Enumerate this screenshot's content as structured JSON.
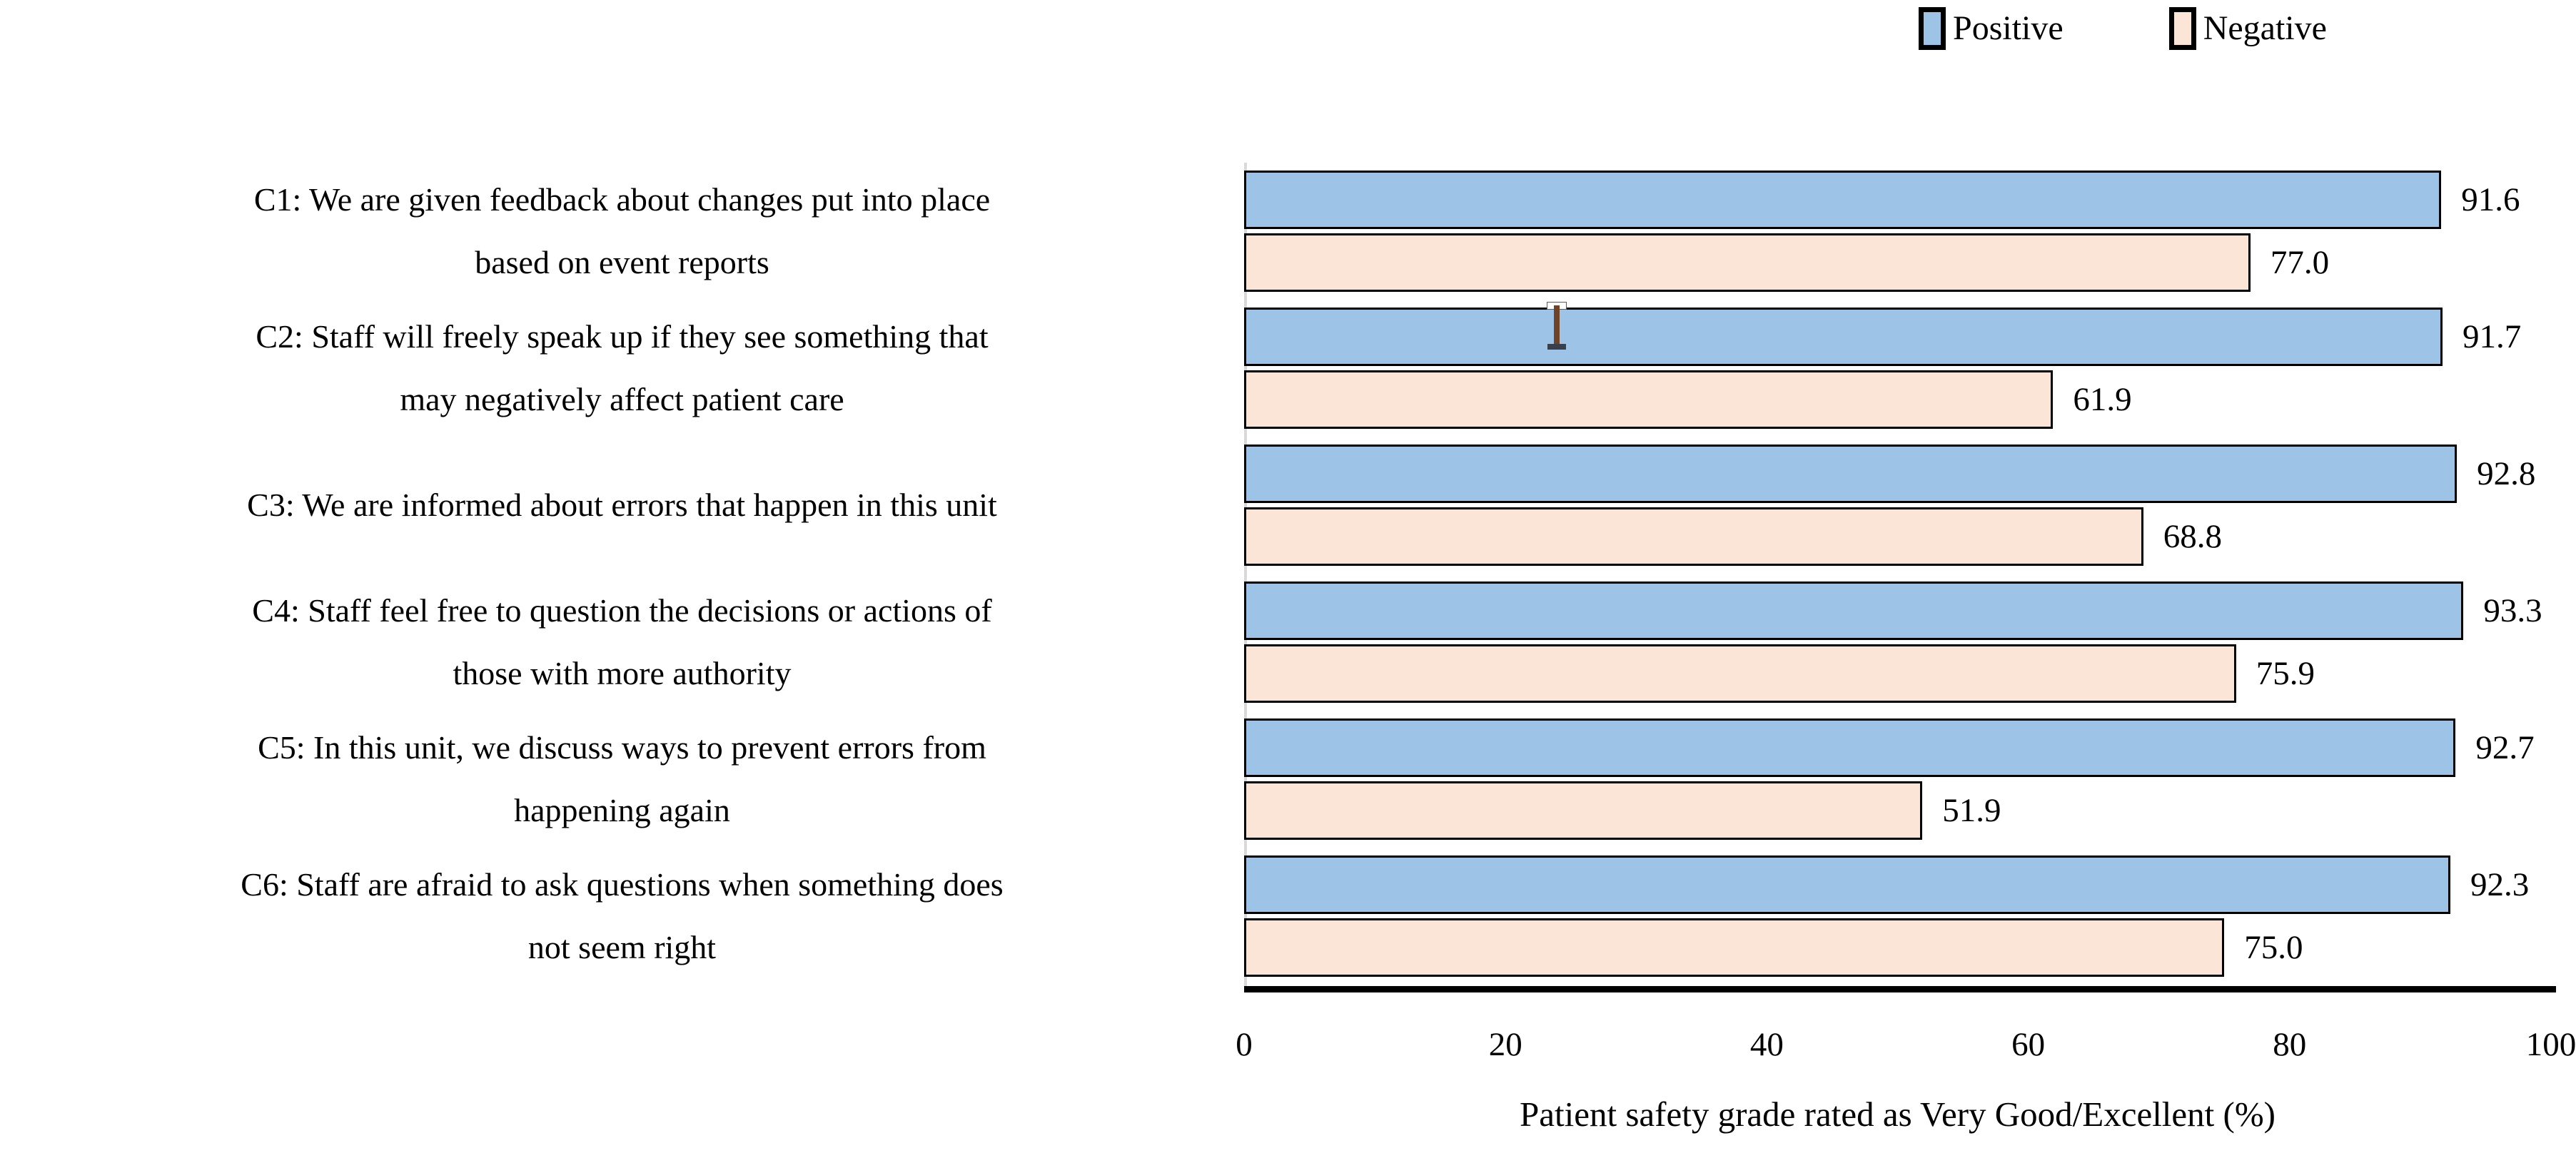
{
  "chart_data": {
    "type": "bar",
    "orientation": "horizontal",
    "title": "",
    "xlabel": "Patient safety grade rated as Very Good/Excellent (%)",
    "ylabel": "",
    "xlim": [
      0,
      100
    ],
    "xticks": [
      0,
      20,
      40,
      60,
      80,
      100
    ],
    "grid": false,
    "legend_position": "top-right",
    "value_labels": "outside end, one decimal",
    "categories": [
      "C1: We are given feedback about changes put into place\nbased on event reports",
      "C2: Staff will freely speak up if they see something that\nmay negatively affect patient care",
      "C3: We are informed about errors that happen in this unit",
      "C4: Staff feel free to question the decisions or actions of\nthose with more authority",
      "C5: In this unit, we discuss ways to prevent errors from\nhappening again",
      "C6: Staff are afraid to ask questions when something does\nnot seem right"
    ],
    "series": [
      {
        "name": "Positive",
        "color": "#9DC3E6",
        "border_color": "#000000",
        "values": [
          91.6,
          91.7,
          92.8,
          93.3,
          92.7,
          92.3
        ]
      },
      {
        "name": "Negative",
        "color": "#FBE5D6",
        "border_color": "#000000",
        "values": [
          77.0,
          61.9,
          68.8,
          75.9,
          51.9,
          75.0
        ]
      }
    ]
  },
  "legend": {
    "items": [
      {
        "label": "Positive",
        "color": "#9DC3E6"
      },
      {
        "label": "Negative",
        "color": "#FBE5D6"
      }
    ]
  },
  "axis": {
    "line_color": "#000000",
    "edge_color": "#d9d9d9"
  },
  "cursor": {
    "kind": "text-ibeam",
    "stem_color": "#6e4327"
  }
}
